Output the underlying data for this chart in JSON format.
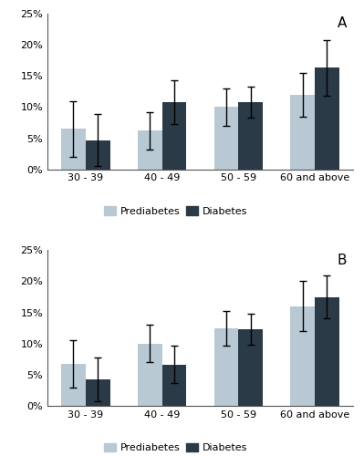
{
  "categories": [
    "30 - 39",
    "40 - 49",
    "50 - 59",
    "60 and above"
  ],
  "panel_A": {
    "label": "A",
    "prediabetes_values": [
      6.5,
      6.2,
      10.0,
      12.0
    ],
    "diabetes_values": [
      4.7,
      10.8,
      10.8,
      16.3
    ],
    "prediabetes_errors": [
      4.5,
      3.0,
      3.0,
      3.5
    ],
    "diabetes_errors": [
      4.2,
      3.5,
      2.5,
      4.5
    ]
  },
  "panel_B": {
    "label": "B",
    "prediabetes_values": [
      6.8,
      10.0,
      12.5,
      16.0
    ],
    "diabetes_values": [
      4.2,
      6.6,
      12.3,
      17.5
    ],
    "prediabetes_errors": [
      3.8,
      3.0,
      2.8,
      4.0
    ],
    "diabetes_errors": [
      3.5,
      3.0,
      2.5,
      3.5
    ]
  },
  "prediabetes_color": "#b8c9d4",
  "diabetes_color": "#2b3a47",
  "bar_width": 0.32,
  "ylim": [
    0,
    25
  ],
  "yticks": [
    0,
    5,
    10,
    15,
    20,
    25
  ],
  "legend_labels": [
    "Prediabetes",
    "Diabetes"
  ],
  "background_color": "#ffffff",
  "capsize": 3,
  "error_linewidth": 1.0,
  "tick_fontsize": 8,
  "legend_fontsize": 8
}
